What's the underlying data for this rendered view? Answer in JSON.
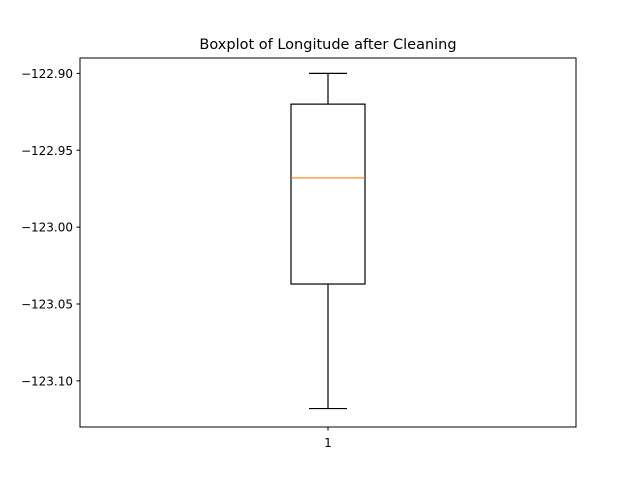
{
  "chart_data": {
    "type": "box",
    "title": "Boxplot of Longitude after Cleaning",
    "xlabel": "",
    "ylabel": "",
    "categories": [
      "1"
    ],
    "boxes": [
      {
        "category": "1",
        "whisker_high": -122.9,
        "q3": -122.92,
        "median": -122.968,
        "q1": -123.037,
        "whisker_low": -123.118
      }
    ],
    "ylim": [
      -123.13,
      -122.89
    ],
    "yticks": [
      -122.9,
      -122.95,
      -123.0,
      -123.05,
      -123.1
    ],
    "ytick_labels": [
      "−122.90",
      "−122.95",
      "−123.00",
      "−123.05",
      "−123.10"
    ],
    "grid": false,
    "colors": {
      "box": "#000000",
      "median": "#ff7f0e"
    }
  }
}
